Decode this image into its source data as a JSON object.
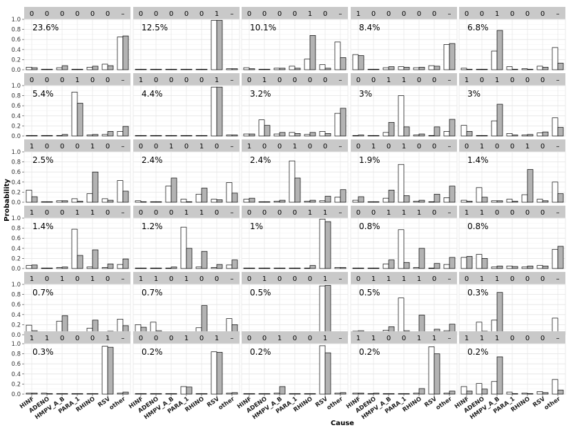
{
  "chart_data": {
    "type": "bar",
    "ylabel": "Probability",
    "xlabel": "Cause",
    "ylim": [
      0,
      1
    ],
    "yticks": [
      "0.0",
      "0.2",
      "0.4",
      "0.6",
      "0.8",
      "1.0"
    ],
    "categories": [
      "HINF",
      "ADENO",
      "HMPV_A_B",
      "PARA_1",
      "RHINO",
      "RSV",
      "other"
    ],
    "grid": true,
    "bar_colors": [
      "#ffffff",
      "#b3b3b3"
    ],
    "strip_color": "#c9c9c9",
    "panels": [
      {
        "strip": [
          "0",
          "0",
          "0",
          "0",
          "0",
          "0",
          "–"
        ],
        "percent": "23.6%",
        "pairs": [
          [
            0.05,
            0.04
          ],
          [
            0.01,
            0.01
          ],
          [
            0.04,
            0.08
          ],
          [
            0.01,
            0.01
          ],
          [
            0.05,
            0.07
          ],
          [
            0.11,
            0.08
          ],
          [
            0.65,
            0.67
          ]
        ]
      },
      {
        "strip": [
          "0",
          "0",
          "0",
          "0",
          "0",
          "1",
          "–"
        ],
        "percent": "12.5%",
        "pairs": [
          [
            0.01,
            0.01
          ],
          [
            0.01,
            0.01
          ],
          [
            0.01,
            0.01
          ],
          [
            0.01,
            0.01
          ],
          [
            0.01,
            0.01
          ],
          [
            0.98,
            0.98
          ],
          [
            0.02,
            0.02
          ]
        ]
      },
      {
        "strip": [
          "0",
          "0",
          "0",
          "0",
          "1",
          "0",
          "–"
        ],
        "percent": "10.1%",
        "pairs": [
          [
            0.04,
            0.02
          ],
          [
            0.01,
            0.01
          ],
          [
            0.03,
            0.03
          ],
          [
            0.07,
            0.03
          ],
          [
            0.21,
            0.68
          ],
          [
            0.1,
            0.03
          ],
          [
            0.55,
            0.24
          ]
        ]
      },
      {
        "strip": [
          "1",
          "0",
          "0",
          "0",
          "0",
          "0",
          "–"
        ],
        "percent": "8.4%",
        "pairs": [
          [
            0.3,
            0.28
          ],
          [
            0.01,
            0.01
          ],
          [
            0.04,
            0.06
          ],
          [
            0.06,
            0.05
          ],
          [
            0.04,
            0.05
          ],
          [
            0.08,
            0.07
          ],
          [
            0.5,
            0.52
          ]
        ]
      },
      {
        "strip": [
          "0",
          "0",
          "1",
          "0",
          "0",
          "0",
          "–"
        ],
        "percent": "6.8%",
        "pairs": [
          [
            0.03,
            0.01
          ],
          [
            0.01,
            0.01
          ],
          [
            0.37,
            0.78
          ],
          [
            0.06,
            0.01
          ],
          [
            0.02,
            0.01
          ],
          [
            0.07,
            0.05
          ],
          [
            0.44,
            0.13
          ]
        ]
      },
      {
        "strip": [
          "0",
          "0",
          "0",
          "1",
          "0",
          "0",
          "–"
        ],
        "percent": "5.4%",
        "pairs": [
          [
            0.01,
            0.01
          ],
          [
            0.01,
            0.01
          ],
          [
            0.01,
            0.03
          ],
          [
            0.87,
            0.65
          ],
          [
            0.02,
            0.03
          ],
          [
            0.03,
            0.09
          ],
          [
            0.09,
            0.19
          ]
        ]
      },
      {
        "strip": [
          "1",
          "0",
          "0",
          "0",
          "0",
          "1",
          "–"
        ],
        "percent": "4.4%",
        "pairs": [
          [
            0.01,
            0.01
          ],
          [
            0.01,
            0.01
          ],
          [
            0.01,
            0.01
          ],
          [
            0.01,
            0.01
          ],
          [
            0.01,
            0.01
          ],
          [
            0.97,
            0.97
          ],
          [
            0.02,
            0.02
          ]
        ]
      },
      {
        "strip": [
          "0",
          "1",
          "0",
          "0",
          "0",
          "0",
          "–"
        ],
        "percent": "3.2%",
        "pairs": [
          [
            0.04,
            0.04
          ],
          [
            0.32,
            0.21
          ],
          [
            0.04,
            0.07
          ],
          [
            0.07,
            0.05
          ],
          [
            0.03,
            0.07
          ],
          [
            0.09,
            0.05
          ],
          [
            0.45,
            0.55
          ]
        ]
      },
      {
        "strip": [
          "0",
          "0",
          "1",
          "1",
          "0",
          "0",
          "–"
        ],
        "percent": "3%",
        "pairs": [
          [
            0.01,
            0.02
          ],
          [
            0.01,
            0.01
          ],
          [
            0.07,
            0.27
          ],
          [
            0.8,
            0.18
          ],
          [
            0.02,
            0.04
          ],
          [
            0.01,
            0.18
          ],
          [
            0.09,
            0.33
          ]
        ]
      },
      {
        "strip": [
          "1",
          "0",
          "1",
          "0",
          "0",
          "0",
          "–"
        ],
        "percent": "3%",
        "pairs": [
          [
            0.21,
            0.09
          ],
          [
            0.01,
            0.01
          ],
          [
            0.3,
            0.63
          ],
          [
            0.05,
            0.02
          ],
          [
            0.02,
            0.03
          ],
          [
            0.06,
            0.08
          ],
          [
            0.36,
            0.17
          ]
        ]
      },
      {
        "strip": [
          "1",
          "0",
          "0",
          "0",
          "1",
          "0",
          "–"
        ],
        "percent": "2.5%",
        "pairs": [
          [
            0.24,
            0.11
          ],
          [
            0.01,
            0.01
          ],
          [
            0.03,
            0.03
          ],
          [
            0.07,
            0.02
          ],
          [
            0.17,
            0.6
          ],
          [
            0.07,
            0.04
          ],
          [
            0.43,
            0.22
          ]
        ]
      },
      {
        "strip": [
          "0",
          "0",
          "1",
          "0",
          "1",
          "0",
          "–"
        ],
        "percent": "2.4%",
        "pairs": [
          [
            0.03,
            0.01
          ],
          [
            0.01,
            0.01
          ],
          [
            0.32,
            0.48
          ],
          [
            0.06,
            0.01
          ],
          [
            0.16,
            0.28
          ],
          [
            0.06,
            0.05
          ],
          [
            0.39,
            0.18
          ]
        ]
      },
      {
        "strip": [
          "1",
          "0",
          "0",
          "1",
          "0",
          "0",
          "–"
        ],
        "percent": "2.4%",
        "pairs": [
          [
            0.06,
            0.08
          ],
          [
            0.01,
            0.01
          ],
          [
            0.02,
            0.04
          ],
          [
            0.82,
            0.48
          ],
          [
            0.02,
            0.04
          ],
          [
            0.03,
            0.12
          ],
          [
            0.1,
            0.25
          ]
        ]
      },
      {
        "strip": [
          "0",
          "1",
          "0",
          "1",
          "0",
          "0",
          "–"
        ],
        "percent": "1.9%",
        "pairs": [
          [
            0.04,
            0.11
          ],
          [
            0.01,
            0.01
          ],
          [
            0.08,
            0.24
          ],
          [
            0.75,
            0.13
          ],
          [
            0.02,
            0.04
          ],
          [
            0.01,
            0.16
          ],
          [
            0.09,
            0.32
          ]
        ]
      },
      {
        "strip": [
          "0",
          "1",
          "0",
          "0",
          "1",
          "0",
          "–"
        ],
        "percent": "1.4%",
        "pairs": [
          [
            0.04,
            0.02
          ],
          [
            0.29,
            0.1
          ],
          [
            0.03,
            0.03
          ],
          [
            0.06,
            0.02
          ],
          [
            0.15,
            0.65
          ],
          [
            0.06,
            0.03
          ],
          [
            0.4,
            0.17
          ]
        ]
      },
      {
        "strip": [
          "1",
          "0",
          "0",
          "1",
          "1",
          "0",
          "–"
        ],
        "percent": "1.4%",
        "pairs": [
          [
            0.06,
            0.07
          ],
          [
            0.01,
            0.01
          ],
          [
            0.02,
            0.03
          ],
          [
            0.78,
            0.26
          ],
          [
            0.03,
            0.37
          ],
          [
            0.02,
            0.09
          ],
          [
            0.08,
            0.19
          ]
        ]
      },
      {
        "strip": [
          "0",
          "0",
          "0",
          "1",
          "1",
          "0",
          "–"
        ],
        "percent": "1.2%",
        "pairs": [
          [
            0.01,
            0.01
          ],
          [
            0.01,
            0.01
          ],
          [
            0.01,
            0.03
          ],
          [
            0.82,
            0.4
          ],
          [
            0.03,
            0.34
          ],
          [
            0.02,
            0.08
          ],
          [
            0.07,
            0.17
          ]
        ]
      },
      {
        "strip": [
          "0",
          "0",
          "0",
          "0",
          "1",
          "1",
          "–"
        ],
        "percent": "1%",
        "pairs": [
          [
            0.01,
            0.01
          ],
          [
            0.01,
            0.01
          ],
          [
            0.01,
            0.01
          ],
          [
            0.01,
            0.01
          ],
          [
            0.01,
            0.06
          ],
          [
            0.98,
            0.93
          ],
          [
            0.02,
            0.02
          ]
        ]
      },
      {
        "strip": [
          "0",
          "0",
          "1",
          "1",
          "1",
          "0",
          "–"
        ],
        "percent": "0.8%",
        "pairs": [
          [
            0.01,
            0.01
          ],
          [
            0.01,
            0.01
          ],
          [
            0.09,
            0.17
          ],
          [
            0.77,
            0.12
          ],
          [
            0.02,
            0.4
          ],
          [
            0.01,
            0.1
          ],
          [
            0.08,
            0.22
          ]
        ]
      },
      {
        "strip": [
          "1",
          "1",
          "0",
          "0",
          "0",
          "0",
          "–"
        ],
        "percent": "0.8%",
        "pairs": [
          [
            0.22,
            0.24
          ],
          [
            0.28,
            0.2
          ],
          [
            0.03,
            0.05
          ],
          [
            0.05,
            0.04
          ],
          [
            0.03,
            0.05
          ],
          [
            0.06,
            0.05
          ],
          [
            0.38,
            0.44
          ]
        ]
      },
      {
        "strip": [
          "1",
          "0",
          "1",
          "0",
          "1",
          "0",
          "–"
        ],
        "percent": "0.7%",
        "pairs": [
          [
            0.19,
            0.08
          ],
          [
            0.01,
            0.01
          ],
          [
            0.27,
            0.38
          ],
          [
            0.05,
            0.03
          ],
          [
            0.13,
            0.29
          ],
          [
            0.05,
            0.07
          ],
          [
            0.31,
            0.18
          ]
        ]
      },
      {
        "strip": [
          "1",
          "1",
          "0",
          "1",
          "0",
          "0",
          "–"
        ],
        "percent": "0.7%",
        "pairs": [
          [
            0.2,
            0.15
          ],
          [
            0.25,
            0.08
          ],
          [
            0.03,
            0.03
          ],
          [
            0.05,
            0.02
          ],
          [
            0.14,
            0.58
          ],
          [
            0.05,
            0.03
          ],
          [
            0.32,
            0.2
          ]
        ]
      },
      {
        "strip": [
          "0",
          "1",
          "0",
          "0",
          "0",
          "1",
          "–"
        ],
        "percent": "0.5%",
        "pairs": [
          [
            0.01,
            0.01
          ],
          [
            0.01,
            0.01
          ],
          [
            0.01,
            0.01
          ],
          [
            0.01,
            0.01
          ],
          [
            0.01,
            0.01
          ],
          [
            0.97,
            0.98
          ],
          [
            0.02,
            0.02
          ]
        ]
      },
      {
        "strip": [
          "0",
          "1",
          "1",
          "1",
          "1",
          "0",
          "–"
        ],
        "percent": "0.5%",
        "pairs": [
          [
            0.07,
            0.08
          ],
          [
            0.01,
            0.01
          ],
          [
            0.09,
            0.16
          ],
          [
            0.73,
            0.08
          ],
          [
            0.03,
            0.39
          ],
          [
            0.02,
            0.11
          ],
          [
            0.08,
            0.21
          ]
        ]
      },
      {
        "strip": [
          "0",
          "1",
          "1",
          "0",
          "0",
          "0",
          "–"
        ],
        "percent": "0.3%",
        "pairs": [
          [
            0.03,
            0.01
          ],
          [
            0.25,
            0.07
          ],
          [
            0.29,
            0.84
          ],
          [
            0.05,
            0.01
          ],
          [
            0.02,
            0.02
          ],
          [
            0.06,
            0.03
          ],
          [
            0.33,
            0.06
          ]
        ]
      },
      {
        "strip": [
          "1",
          "1",
          "0",
          "0",
          "0",
          "1",
          "–"
        ],
        "percent": "0.3%",
        "pairs": [
          [
            0.02,
            0.02
          ],
          [
            0.02,
            0.01
          ],
          [
            0.01,
            0.01
          ],
          [
            0.01,
            0.01
          ],
          [
            0.01,
            0.01
          ],
          [
            0.95,
            0.93
          ],
          [
            0.02,
            0.04
          ]
        ]
      },
      {
        "strip": [
          "0",
          "0",
          "0",
          "1",
          "0",
          "1",
          "–"
        ],
        "percent": "0.2%",
        "pairs": [
          [
            0.01,
            0.01
          ],
          [
            0.01,
            0.01
          ],
          [
            0.01,
            0.01
          ],
          [
            0.15,
            0.14
          ],
          [
            0.01,
            0.01
          ],
          [
            0.84,
            0.83
          ],
          [
            0.02,
            0.03
          ]
        ]
      },
      {
        "strip": [
          "0",
          "0",
          "1",
          "0",
          "0",
          "1",
          "–"
        ],
        "percent": "0.2%",
        "pairs": [
          [
            0.01,
            0.01
          ],
          [
            0.01,
            0.01
          ],
          [
            0.02,
            0.15
          ],
          [
            0.01,
            0.01
          ],
          [
            0.01,
            0.01
          ],
          [
            0.96,
            0.82
          ],
          [
            0.02,
            0.03
          ]
        ]
      },
      {
        "strip": [
          "1",
          "1",
          "0",
          "0",
          "1",
          "1",
          "–"
        ],
        "percent": "0.2%",
        "pairs": [
          [
            0.02,
            0.02
          ],
          [
            0.01,
            0.02
          ],
          [
            0.01,
            0.01
          ],
          [
            0.01,
            0.01
          ],
          [
            0.02,
            0.11
          ],
          [
            0.94,
            0.8
          ],
          [
            0.02,
            0.06
          ]
        ]
      },
      {
        "strip": [
          "1",
          "1",
          "1",
          "0",
          "0",
          "0",
          "–"
        ],
        "percent": "0.2%",
        "pairs": [
          [
            0.15,
            0.06
          ],
          [
            0.21,
            0.1
          ],
          [
            0.25,
            0.74
          ],
          [
            0.04,
            0.01
          ],
          [
            0.02,
            0.01
          ],
          [
            0.05,
            0.03
          ],
          [
            0.29,
            0.08
          ]
        ]
      }
    ]
  }
}
